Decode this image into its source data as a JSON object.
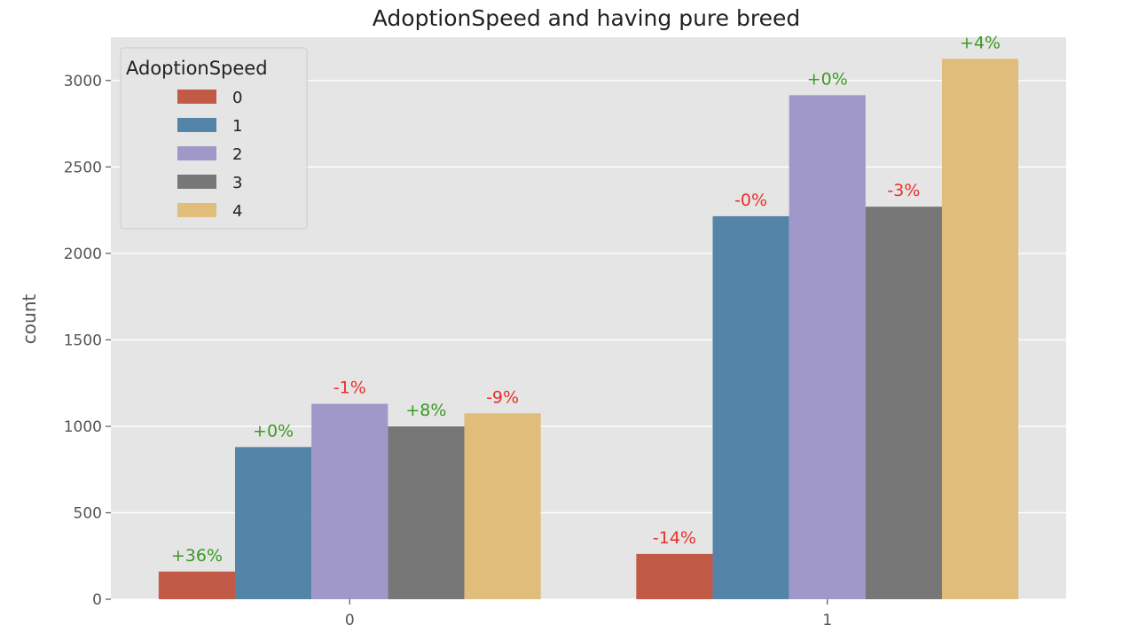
{
  "chart_data": {
    "type": "bar",
    "title": "AdoptionSpeed and having pure breed",
    "xlabel": "",
    "ylabel": "count",
    "categories": [
      "0",
      "1"
    ],
    "ylim": [
      0,
      3250
    ],
    "yticks": [
      0,
      500,
      1000,
      1500,
      2000,
      2500,
      3000
    ],
    "grid": true,
    "legend": {
      "title": "AdoptionSpeed",
      "position": "top-left",
      "entries": [
        "0",
        "1",
        "2",
        "3",
        "4"
      ]
    },
    "series": [
      {
        "name": "0",
        "color": "#c15a46",
        "values": [
          160,
          262
        ],
        "labels": [
          "+36%",
          "-14%"
        ],
        "label_colors": [
          "#3a9a22",
          "#e8312a"
        ]
      },
      {
        "name": "1",
        "color": "#5584a9",
        "values": [
          880,
          2215
        ],
        "labels": [
          "+0%",
          "-0%"
        ],
        "label_colors": [
          "#3a9a22",
          "#e8312a"
        ]
      },
      {
        "name": "2",
        "color": "#a198ca",
        "values": [
          1130,
          2915
        ],
        "labels": [
          "-1%",
          "+0%"
        ],
        "label_colors": [
          "#e8312a",
          "#3a9a22"
        ]
      },
      {
        "name": "3",
        "color": "#777777",
        "values": [
          1000,
          2270
        ],
        "labels": [
          "+8%",
          "-3%"
        ],
        "label_colors": [
          "#3a9a22",
          "#e8312a"
        ]
      },
      {
        "name": "4",
        "color": "#e0bd7a",
        "values": [
          1075,
          3125
        ],
        "labels": [
          "-9%",
          "+4%"
        ],
        "label_colors": [
          "#e8312a",
          "#3a9a22"
        ]
      }
    ]
  }
}
